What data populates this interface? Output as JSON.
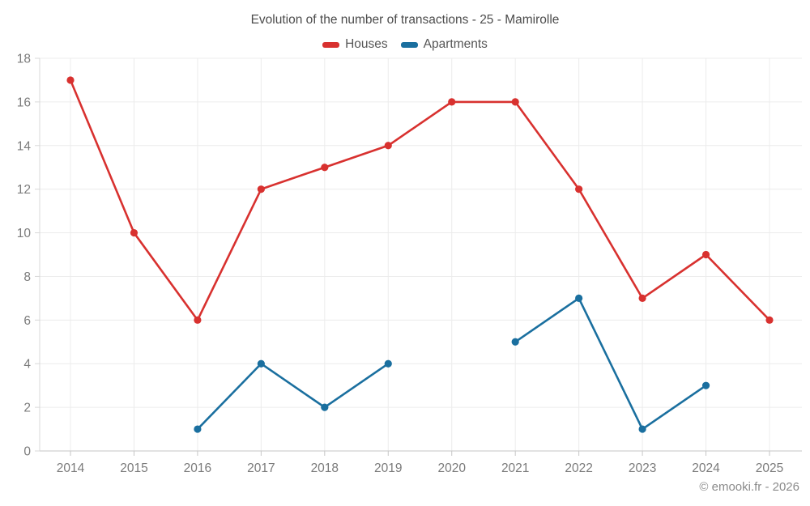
{
  "chart_data": {
    "type": "line",
    "title": "Evolution of the number of transactions - 25 - Mamirolle",
    "categories": [
      "2014",
      "2015",
      "2016",
      "2017",
      "2018",
      "2019",
      "2020",
      "2021",
      "2022",
      "2023",
      "2024",
      "2025"
    ],
    "series": [
      {
        "name": "Houses",
        "color": "#d8312f",
        "values": [
          17,
          10,
          6,
          12,
          13,
          14,
          16,
          16,
          12,
          7,
          9,
          6
        ]
      },
      {
        "name": "Apartments",
        "color": "#1a6f9f",
        "values": [
          null,
          null,
          1,
          4,
          2,
          4,
          null,
          5,
          7,
          1,
          3,
          null
        ]
      }
    ],
    "xlabel": "",
    "ylabel": "",
    "ylim": [
      0,
      18
    ],
    "yticks": [
      0,
      2,
      4,
      6,
      8,
      10,
      12,
      14,
      16,
      18
    ],
    "grid": true,
    "legend_position": "top",
    "marker": "circle"
  },
  "footer": {
    "credit": "© emooki.fr - 2026"
  },
  "colors": {
    "grid": "#ececec",
    "axis": "#d8d8d8",
    "baseline": "#c6c6c6",
    "tick_text": "#7b7b7b"
  }
}
